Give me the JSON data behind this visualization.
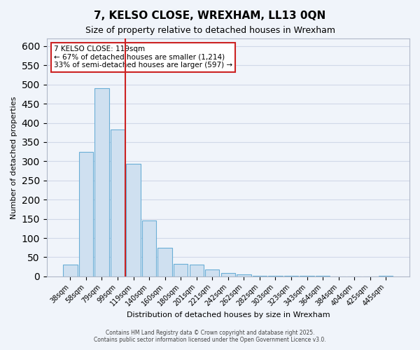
{
  "title": "7, KELSO CLOSE, WREXHAM, LL13 0QN",
  "subtitle": "Size of property relative to detached houses in Wrexham",
  "xlabel": "Distribution of detached houses by size in Wrexham",
  "ylabel": "Number of detached properties",
  "bar_labels": [
    "38sqm",
    "58sqm",
    "79sqm",
    "99sqm",
    "119sqm",
    "140sqm",
    "160sqm",
    "180sqm",
    "201sqm",
    "221sqm",
    "242sqm",
    "262sqm",
    "282sqm",
    "303sqm",
    "323sqm",
    "343sqm",
    "364sqm",
    "384sqm",
    "404sqm",
    "425sqm",
    "445sqm"
  ],
  "bar_values": [
    30,
    325,
    490,
    383,
    293,
    145,
    75,
    32,
    30,
    17,
    8,
    5,
    2,
    2,
    2,
    2,
    1,
    0,
    0,
    0,
    1
  ],
  "bar_color": "#cfe0f0",
  "bar_edge_color": "#6aaed6",
  "vline_index": 4,
  "vline_color": "#cc2222",
  "ylim": [
    0,
    620
  ],
  "yticks": [
    0,
    50,
    100,
    150,
    200,
    250,
    300,
    350,
    400,
    450,
    500,
    550,
    600
  ],
  "annotation_line1": "7 KELSO CLOSE: 119sqm",
  "annotation_line2": "← 67% of detached houses are smaller (1,214)",
  "annotation_line3": "33% of semi-detached houses are larger (597) →",
  "footer1": "Contains HM Land Registry data © Crown copyright and database right 2025.",
  "footer2": "Contains public sector information licensed under the Open Government Licence v3.0.",
  "background_color": "#f0f4fa",
  "grid_color": "#d0d8e8"
}
